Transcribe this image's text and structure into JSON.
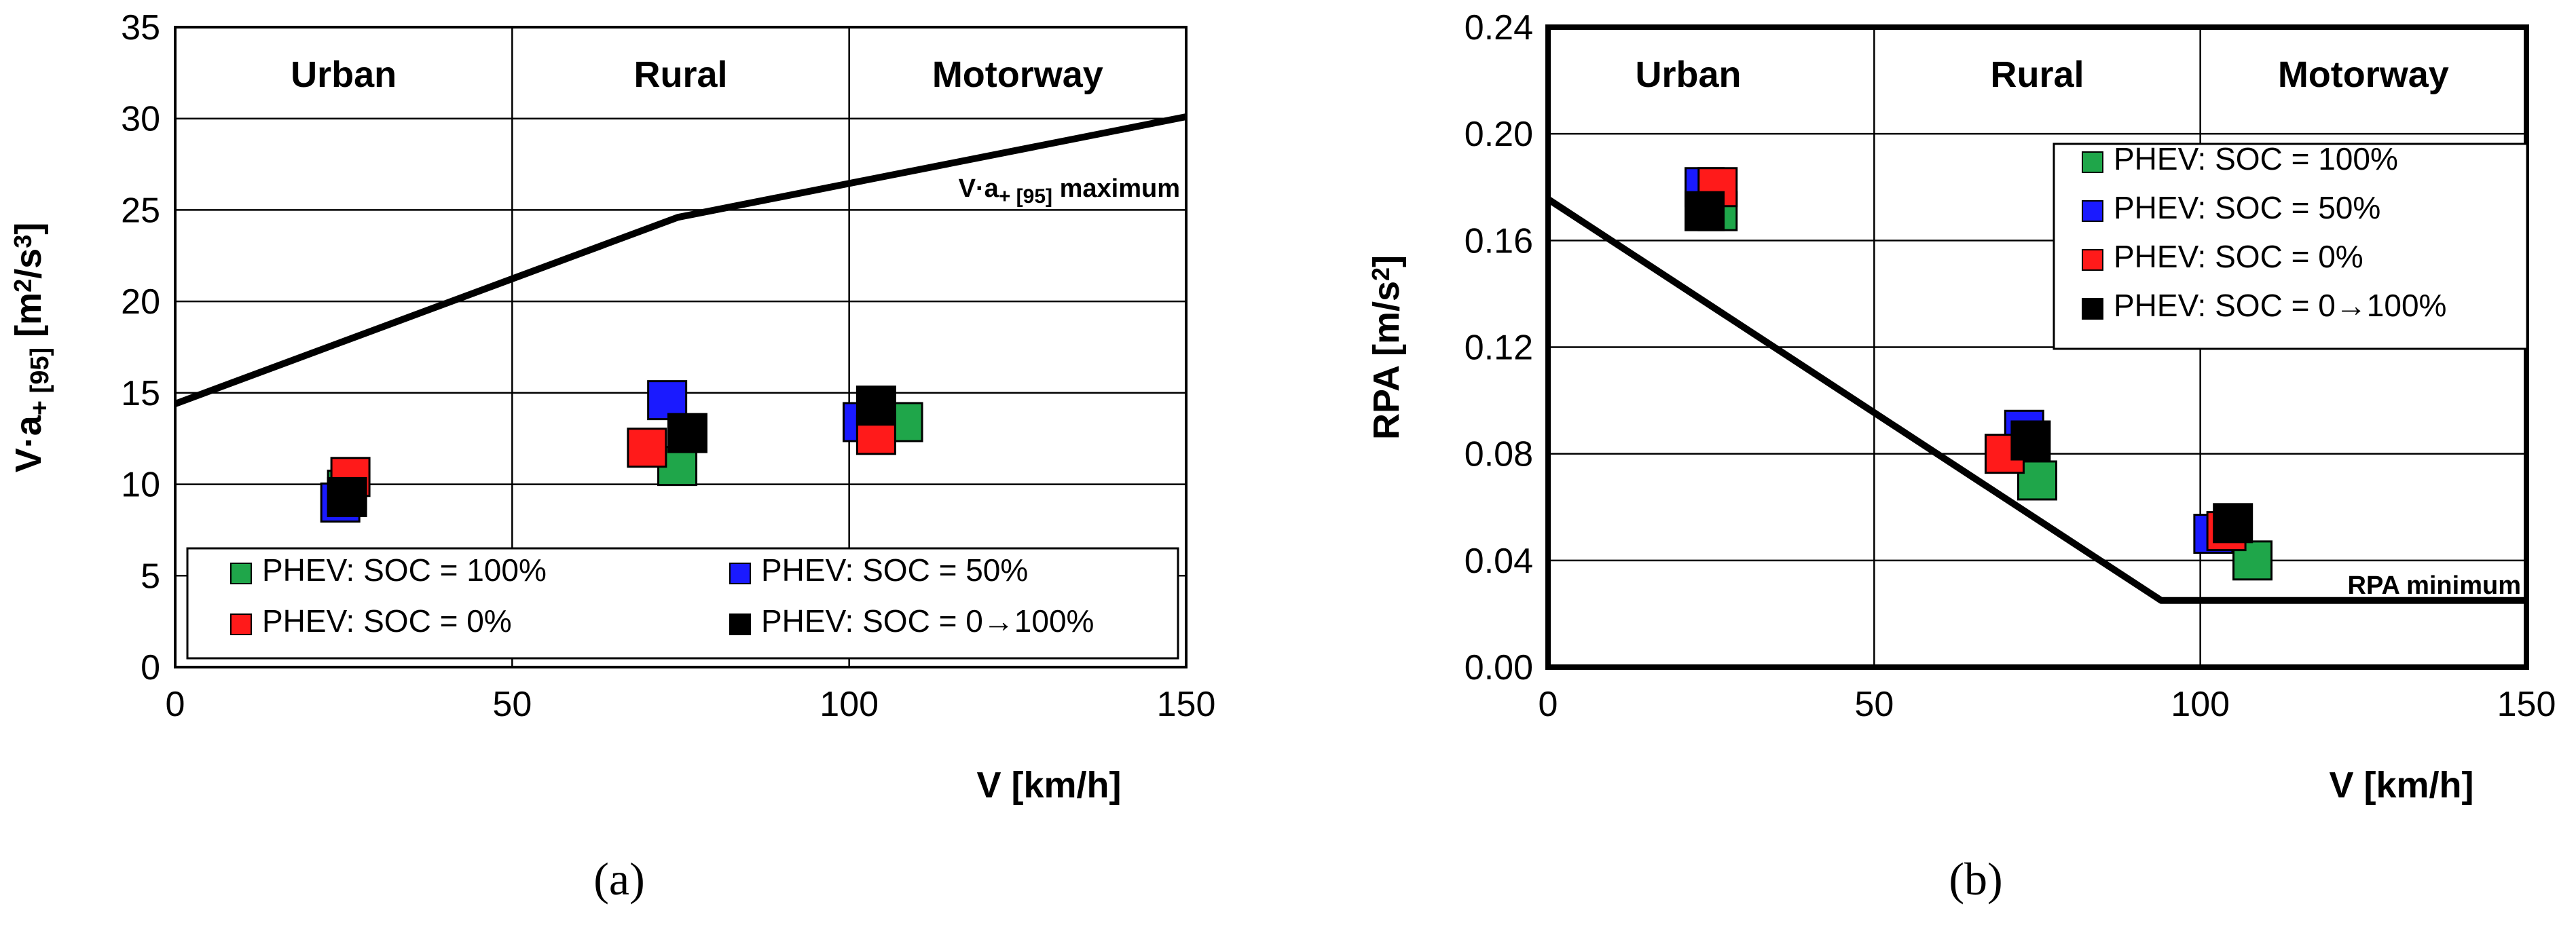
{
  "colors": {
    "green": "#1fa64a",
    "blue": "#1a1aff",
    "red": "#ff1a1a",
    "black": "#000000",
    "grid": "#000000"
  },
  "chart_data": [
    {
      "type": "scatter",
      "caption": "(a)",
      "xlabel": "V [km/h]",
      "ylabel": {
        "a": "V·a",
        "b": "+ [95]",
        "c": " [m",
        "d": "2",
        "e": "/s",
        "f": "3",
        "g": "]"
      },
      "xlim": [
        0,
        150
      ],
      "ylim": [
        0,
        35
      ],
      "xticks": [
        0,
        50,
        100,
        150
      ],
      "yticks": [
        0,
        5,
        10,
        15,
        20,
        25,
        30,
        35
      ],
      "xtick_labels": [
        "0",
        "50",
        "100",
        "150"
      ],
      "ytick_labels": [
        "0",
        "5",
        "10",
        "15",
        "20",
        "25",
        "30",
        "35"
      ],
      "region_bounds": [
        50,
        100
      ],
      "regions": [
        {
          "label": "Urban",
          "x": 25
        },
        {
          "label": "Rural",
          "x": 75
        },
        {
          "label": "Motorway",
          "x": 125
        }
      ],
      "legend": {
        "placement": "bottom",
        "entries": [
          {
            "label": "PHEV: SOC = 100%",
            "color": "green"
          },
          {
            "label": "PHEV: SOC = 50%",
            "color": "blue"
          },
          {
            "label": "PHEV: SOC = 0%",
            "color": "red"
          },
          {
            "label": "PHEV: SOC = 0→100%",
            "color": "black"
          }
        ]
      },
      "limit_line": {
        "label": {
          "a": "V·a",
          "b": "+ [95]",
          "c": " maximum"
        },
        "points": [
          [
            0,
            14.4
          ],
          [
            74.6,
            24.6
          ],
          [
            150,
            30.1
          ]
        ]
      },
      "series": [
        {
          "name": "PHEV: SOC = 100%",
          "color": "green",
          "points": [
            [
              25.5,
              9.7
            ],
            [
              74.5,
              11.0
            ],
            [
              108,
              13.4
            ]
          ]
        },
        {
          "name": "PHEV: SOC = 50%",
          "color": "blue",
          "points": [
            [
              24.5,
              9.0
            ],
            [
              73,
              14.6
            ],
            [
              102,
              13.4
            ]
          ]
        },
        {
          "name": "PHEV: SOC = 0%",
          "color": "red",
          "points": [
            [
              26,
              10.4
            ],
            [
              70,
              12.0
            ],
            [
              104,
              12.7
            ]
          ]
        },
        {
          "name": "PHEV: SOC = 0→100%",
          "color": "black",
          "points": [
            [
              25.5,
              9.3
            ],
            [
              76,
              12.8
            ],
            [
              104,
              14.3
            ]
          ]
        }
      ]
    },
    {
      "type": "scatter",
      "caption": "(b)",
      "xlabel": "V [km/h]",
      "ylabel": {
        "a": "RPA [m/s",
        "b": "2",
        "c": "]"
      },
      "xlim": [
        0,
        150
      ],
      "ylim": [
        0,
        0.24
      ],
      "xticks": [
        0,
        50,
        100,
        150
      ],
      "yticks": [
        0,
        0.04,
        0.08,
        0.12,
        0.16,
        0.2,
        0.24
      ],
      "xtick_labels": [
        "0",
        "50",
        "100",
        "150"
      ],
      "ytick_labels": [
        "0.00",
        "0.04",
        "0.08",
        "0.12",
        "0.16",
        "0.20",
        "0.24"
      ],
      "region_bounds": [
        50,
        100
      ],
      "regions": [
        {
          "label": "Urban",
          "x": 21.5
        },
        {
          "label": "Rural",
          "x": 75
        },
        {
          "label": "Motorway",
          "x": 125
        }
      ],
      "legend": {
        "placement": "top-right",
        "entries": [
          {
            "label": "PHEV: SOC = 100%",
            "color": "green"
          },
          {
            "label": "PHEV: SOC = 50%",
            "color": "blue"
          },
          {
            "label": "PHEV: SOC = 0%",
            "color": "red"
          },
          {
            "label": "PHEV: SOC = 0→100%",
            "color": "black"
          }
        ]
      },
      "limit_line": {
        "label": {
          "a": "RPA minimum"
        },
        "points": [
          [
            0,
            0.1755
          ],
          [
            94,
            0.025
          ],
          [
            150,
            0.025
          ]
        ]
      },
      "series": [
        {
          "name": "PHEV: SOC = 100%",
          "color": "green",
          "points": [
            [
              26,
              0.171
            ],
            [
              75,
              0.07
            ],
            [
              108,
              0.04
            ]
          ]
        },
        {
          "name": "PHEV: SOC = 50%",
          "color": "blue",
          "points": [
            [
              24,
              0.18
            ],
            [
              73,
              0.089
            ],
            [
              102,
              0.05
            ]
          ]
        },
        {
          "name": "PHEV: SOC = 0%",
          "color": "red",
          "points": [
            [
              26,
              0.18
            ],
            [
              70,
              0.08
            ],
            [
              104,
              0.051
            ]
          ]
        },
        {
          "name": "PHEV: SOC = 0→100%",
          "color": "black",
          "points": [
            [
              24,
              0.171
            ],
            [
              74,
              0.085
            ],
            [
              105,
              0.054
            ]
          ]
        }
      ]
    }
  ]
}
